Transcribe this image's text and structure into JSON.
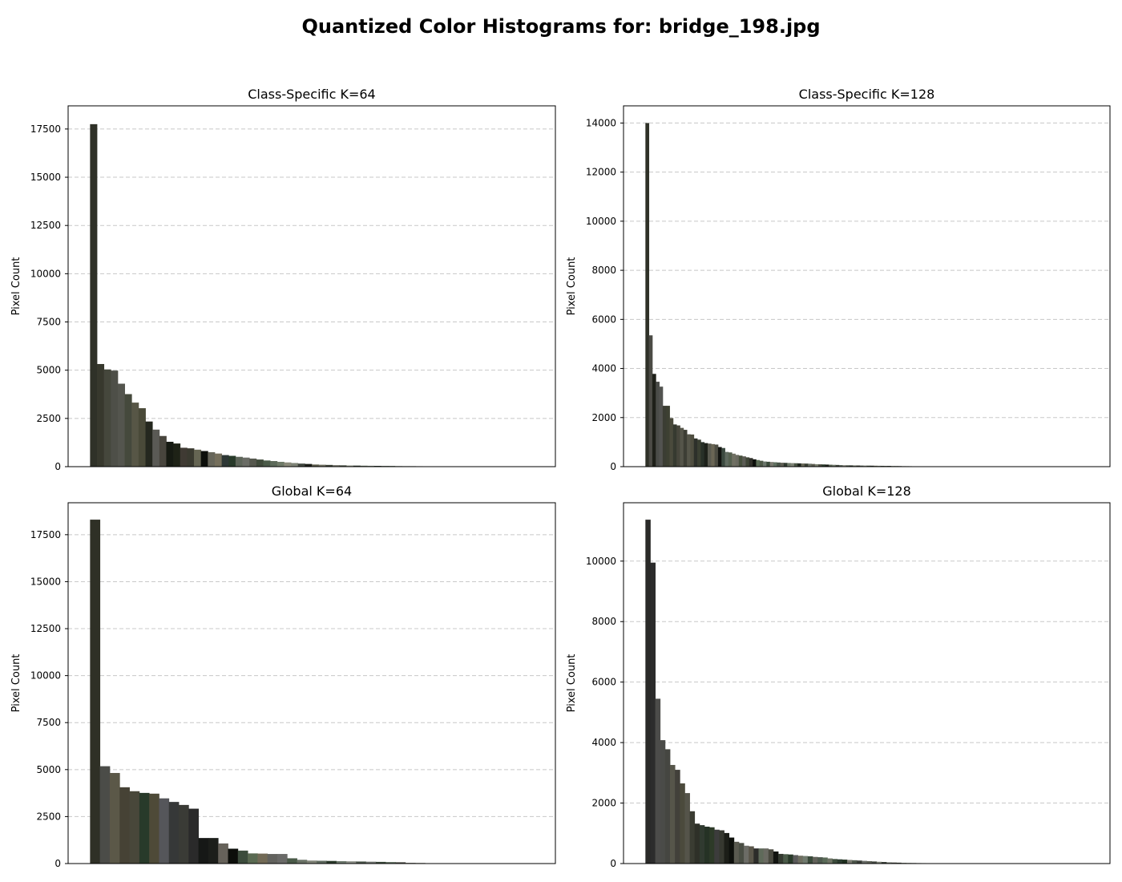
{
  "figure": {
    "title": "Quantized Color Histograms for: bridge_198.jpg"
  },
  "chart_data": [
    {
      "type": "bar",
      "title": "Class-Specific K=64",
      "ylabel": "Pixel Count",
      "xlabel": "",
      "ylim": [
        0,
        18700
      ],
      "yticks": [
        0,
        2500,
        5000,
        7500,
        10000,
        12500,
        15000,
        17500
      ],
      "grid": "y-dashed",
      "x_extent": 64,
      "values": [
        17750,
        5320,
        5040,
        4980,
        4300,
        3760,
        3320,
        3030,
        2340,
        1920,
        1590,
        1290,
        1200,
        980,
        950,
        880,
        810,
        750,
        680,
        600,
        560,
        510,
        470,
        420,
        370,
        320,
        290,
        250,
        220,
        190,
        160,
        140,
        110,
        100,
        90,
        80,
        70,
        60,
        55,
        50,
        45,
        40,
        38,
        35,
        30,
        28,
        25,
        22
      ],
      "colors": [
        "#2f3128",
        "#37382d",
        "#45473c",
        "#4e4f48",
        "#54554e",
        "#45493c",
        "#575646",
        "#4a4a39",
        "#25281f",
        "#5a5a55",
        "#48453d",
        "#161a12",
        "#1e2216",
        "#3f3a33",
        "#3a3a30",
        "#656553",
        "#0d0f0b",
        "#67665a",
        "#756f5c",
        "#2d3735",
        "#283a2a",
        "#5d6559",
        "#6a6c65",
        "#55574d",
        "#3f4a3a",
        "#4a5a48",
        "#5d6a5a",
        "#6f7a68",
        "#8a8a7a",
        "#7f8478",
        "#424840",
        "#1c1e18",
        "#5a5a4a",
        "#6f6f60",
        "#3d4338",
        "#7a7a70",
        "#4b5244",
        "#8a8f80",
        "#2e3a2e",
        "#5f6b5c",
        "#707a6d",
        "#1e2a1e",
        "#505a4e",
        "#3a4a3a",
        "#6a7466",
        "#858c80",
        "#40483c",
        "#2a2e26"
      ]
    },
    {
      "type": "bar",
      "title": "Class-Specific K=128",
      "ylabel": "Pixel Count",
      "xlabel": "",
      "ylim": [
        0,
        14700
      ],
      "yticks": [
        0,
        2000,
        4000,
        6000,
        8000,
        10000,
        12000,
        14000
      ],
      "grid": "y-dashed",
      "x_extent": 128,
      "values": [
        14000,
        5350,
        3780,
        3460,
        3260,
        2480,
        2480,
        1980,
        1720,
        1680,
        1580,
        1500,
        1320,
        1310,
        1150,
        1100,
        1000,
        960,
        940,
        920,
        900,
        800,
        760,
        600,
        580,
        530,
        480,
        450,
        420,
        380,
        350,
        300,
        270,
        240,
        210,
        200,
        190,
        180,
        170,
        160,
        155,
        150,
        145,
        140,
        135,
        130,
        125,
        120,
        110,
        100,
        95,
        90,
        85,
        80,
        75,
        70,
        65,
        60,
        55,
        52,
        50,
        48,
        46,
        44,
        42,
        40,
        38,
        36,
        34,
        32,
        30,
        28,
        26,
        24,
        22,
        20,
        18,
        16,
        15,
        14,
        13,
        12
      ],
      "colors": [
        "#2f3128",
        "#4b4b45",
        "#1e2019",
        "#4a4c48",
        "#525350",
        "#3b3d33",
        "#3d4032",
        "#4a4a3c",
        "#363a30",
        "#47463c",
        "#55554a",
        "#3d3e35",
        "#56564a",
        "#4f4e40",
        "#2d302a",
        "#3a3f32",
        "#283028",
        "#1d211a",
        "#5a5a50",
        "#6a6655",
        "#4c4c42",
        "#121410",
        "#3c4a40",
        "#5f6a5f",
        "#55604f",
        "#707063",
        "#6a6a60",
        "#47503d",
        "#5c5c55",
        "#3f4537",
        "#2e2e28",
        "#0d100c",
        "#5a6b55",
        "#4e5a48",
        "#6a756a",
        "#3a4a3a",
        "#7a7a70",
        "#607060",
        "#485448",
        "#5f5f55",
        "#303a30",
        "#6f7a6a",
        "#808578",
        "#4a5545",
        "#1e251e",
        "#6a6a5a",
        "#3a4035",
        "#6a7065",
        "#5a5a4e",
        "#7a8070",
        "#4a4a40",
        "#2a3a2a",
        "#1a1e18",
        "#55604f",
        "#707a6a",
        "#3f453a",
        "#606a60",
        "#8a8a80",
        "#4b5548",
        "#2e342c",
        "#6c7060",
        "#3a3a32",
        "#5a645a",
        "#80847a",
        "#455040",
        "#2a2f28",
        "#606050",
        "#737a70",
        "#3f4a3f",
        "#555a50",
        "#1e201c",
        "#6a6f62",
        "#4f554a",
        "#3a3e36",
        "#7d7f75",
        "#5c6055",
        "#2f352e",
        "#6a6a60",
        "#484e44",
        "#383c34",
        "#5e6258",
        "#7a7c72"
      ]
    },
    {
      "type": "bar",
      "title": "Global K=64",
      "ylabel": "Pixel Count",
      "xlabel": "",
      "ylim": [
        0,
        19200
      ],
      "yticks": [
        0,
        2500,
        5000,
        7500,
        10000,
        12500,
        15000,
        17500
      ],
      "grid": "y-dashed",
      "x_extent": 45,
      "values": [
        18300,
        5180,
        4820,
        4060,
        3850,
        3760,
        3720,
        3470,
        3280,
        3120,
        2920,
        1360,
        1360,
        1070,
        790,
        690,
        540,
        530,
        510,
        510,
        280,
        200,
        160,
        150,
        140,
        130,
        120,
        110,
        100,
        90,
        80,
        70,
        40,
        30
      ],
      "colors": [
        "#2f3026",
        "#4b4c48",
        "#5b5848",
        "#464235",
        "#48473a",
        "#283a2a",
        "#4e4a38",
        "#55565a",
        "#363838",
        "#3a3b36",
        "#2a2a2a",
        "#161816",
        "#1c1e1a",
        "#66625a",
        "#0c0e0a",
        "#3c4c3c",
        "#5a6a52",
        "#726a56",
        "#62625e",
        "#6a6a68",
        "#4a5a48",
        "#6a7266",
        "#808478",
        "#5e6a5e",
        "#2a3a2a",
        "#6e7a6e",
        "#8a8e86",
        "#4a544a",
        "#707470",
        "#3a4a3a",
        "#5a6a5a",
        "#4a4a44",
        "#7a7a72",
        "#5a5a52"
      ]
    },
    {
      "type": "bar",
      "title": "Global K=128",
      "ylabel": "Pixel Count",
      "xlabel": "",
      "ylim": [
        0,
        11930
      ],
      "yticks": [
        0,
        2000,
        4000,
        6000,
        8000,
        10000
      ],
      "grid": "y-dashed",
      "x_extent": 90,
      "values": [
        11370,
        9950,
        5450,
        4080,
        3780,
        3260,
        3100,
        2650,
        2330,
        1730,
        1320,
        1270,
        1220,
        1200,
        1120,
        1100,
        1010,
        860,
        720,
        680,
        590,
        570,
        500,
        500,
        500,
        470,
        400,
        320,
        310,
        300,
        280,
        260,
        250,
        240,
        220,
        210,
        200,
        170,
        150,
        140,
        130,
        120,
        110,
        100,
        90,
        80,
        70,
        60,
        50,
        40,
        35,
        30,
        25,
        20,
        18,
        16,
        14,
        12
      ],
      "colors": [
        "#2a2a28",
        "#2c2c2c",
        "#4c4c4a",
        "#4a4b48",
        "#454641",
        "#56554a",
        "#42403a",
        "#4b4a3c",
        "#55544a",
        "#3a3c32",
        "#2e3028",
        "#303a30",
        "#253225",
        "#2d3a28",
        "#3c3c3c",
        "#363830",
        "#1c1e18",
        "#0e100c",
        "#5a5a50",
        "#4a4e44",
        "#6c6c66",
        "#5a564a",
        "#2c2c2a",
        "#5f6a5a",
        "#6a6a62",
        "#4a4a40",
        "#121410",
        "#343a30",
        "#4a5a48",
        "#2a3a2a",
        "#5a5a5a",
        "#6e6e60",
        "#707a6e",
        "#3a4a3a",
        "#62625a",
        "#4e5a4e",
        "#5a6a58",
        "#6f7465",
        "#3c4c3c",
        "#2a3a2e",
        "#1e2e1e",
        "#7a7a70",
        "#505a4e",
        "#3a3e38",
        "#6a6e68",
        "#5e6258",
        "#454a42",
        "#7f8478",
        "#2e342c",
        "#646a60",
        "#4a4a44",
        "#3a4038",
        "#727870",
        "#56584e",
        "#3e4238",
        "#68685e",
        "#2c302a",
        "#5c6054"
      ]
    }
  ]
}
